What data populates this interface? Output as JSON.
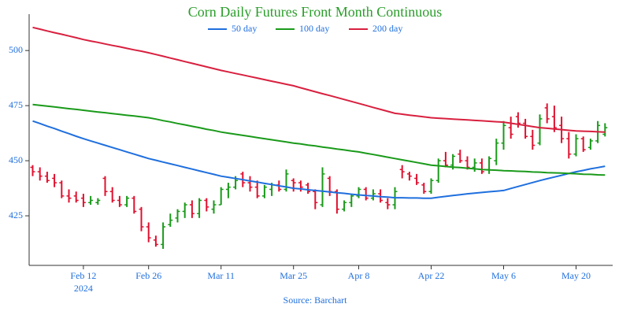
{
  "chart_data": {
    "type": "ohlc",
    "title": "Corn Daily Futures Front Month Continuous",
    "source": "Source: Barchart",
    "x": [
      "2024-02-01",
      "2024-02-02",
      "2024-02-05",
      "2024-02-06",
      "2024-02-07",
      "2024-02-08",
      "2024-02-09",
      "2024-02-12",
      "2024-02-13",
      "2024-02-14",
      "2024-02-15",
      "2024-02-16",
      "2024-02-20",
      "2024-02-21",
      "2024-02-22",
      "2024-02-23",
      "2024-02-26",
      "2024-02-27",
      "2024-02-28",
      "2024-02-29",
      "2024-03-01",
      "2024-03-04",
      "2024-03-05",
      "2024-03-06",
      "2024-03-07",
      "2024-03-08",
      "2024-03-11",
      "2024-03-12",
      "2024-03-13",
      "2024-03-14",
      "2024-03-15",
      "2024-03-18",
      "2024-03-19",
      "2024-03-20",
      "2024-03-21",
      "2024-03-22",
      "2024-03-25",
      "2024-03-26",
      "2024-03-27",
      "2024-03-28",
      "2024-04-01",
      "2024-04-02",
      "2024-04-03",
      "2024-04-04",
      "2024-04-05",
      "2024-04-08",
      "2024-04-09",
      "2024-04-10",
      "2024-04-11",
      "2024-04-12",
      "2024-04-15",
      "2024-04-16",
      "2024-04-17",
      "2024-04-18",
      "2024-04-19",
      "2024-04-22",
      "2024-04-23",
      "2024-04-24",
      "2024-04-25",
      "2024-04-26",
      "2024-04-29",
      "2024-04-30",
      "2024-05-01",
      "2024-05-02",
      "2024-05-03",
      "2024-05-06",
      "2024-05-07",
      "2024-05-08",
      "2024-05-09",
      "2024-05-10",
      "2024-05-13",
      "2024-05-14",
      "2024-05-15",
      "2024-05-16",
      "2024-05-17",
      "2024-05-20",
      "2024-05-21",
      "2024-05-22",
      "2024-05-23",
      "2024-05-24"
    ],
    "open": [
      447,
      445,
      443,
      442,
      440,
      434,
      434,
      433,
      431,
      431,
      442,
      436,
      432,
      430,
      433,
      428,
      420,
      414,
      412,
      421,
      424,
      427,
      430,
      426,
      432,
      428,
      430,
      437,
      438,
      444,
      440,
      438,
      434,
      437,
      439,
      437,
      441,
      440,
      439,
      436,
      430,
      442,
      436,
      428,
      431,
      434,
      437,
      433,
      435,
      431,
      430,
      446,
      444,
      442,
      439,
      436,
      441,
      450,
      448,
      453,
      450,
      447,
      449,
      446,
      450,
      458,
      465,
      470,
      467,
      461,
      458,
      474,
      470,
      466,
      460,
      453,
      460,
      456,
      459,
      462
    ],
    "high": [
      448,
      447,
      445,
      444,
      441,
      437,
      436,
      435,
      434,
      433,
      443,
      438,
      434,
      434,
      434,
      429,
      422,
      416,
      422,
      426,
      428,
      431,
      432,
      433,
      433,
      432,
      438,
      440,
      443,
      445,
      443,
      441,
      439,
      440,
      441,
      446,
      442,
      441,
      440,
      437,
      447,
      443,
      437,
      432,
      435,
      438,
      438,
      437,
      437,
      433,
      438,
      448,
      445,
      444,
      440,
      442,
      451,
      454,
      453,
      455,
      452,
      451,
      451,
      452,
      460,
      468,
      470,
      472,
      469,
      464,
      471,
      476,
      475,
      470,
      463,
      462,
      461,
      460,
      468,
      467
    ],
    "low": [
      443,
      441,
      440,
      438,
      433,
      431,
      431,
      429,
      430,
      430,
      434,
      431,
      429,
      429,
      426,
      418,
      413,
      411,
      410,
      420,
      422,
      424,
      424,
      424,
      427,
      426,
      430,
      433,
      437,
      438,
      436,
      433,
      433,
      434,
      436,
      436,
      436,
      436,
      435,
      428,
      429,
      434,
      426,
      427,
      429,
      433,
      432,
      432,
      431,
      428,
      428,
      442,
      441,
      439,
      435,
      435,
      440,
      447,
      446,
      449,
      446,
      445,
      444,
      444,
      448,
      455,
      460,
      465,
      460,
      455,
      457,
      467,
      463,
      458,
      451,
      452,
      454,
      455,
      458,
      461
    ],
    "close": [
      445,
      443,
      441,
      440,
      434,
      433,
      432,
      431,
      432,
      432,
      436,
      432,
      430,
      433,
      427,
      420,
      415,
      412,
      420,
      423,
      427,
      430,
      426,
      432,
      429,
      430,
      437,
      438,
      441,
      440,
      438,
      434,
      438,
      439,
      437,
      444,
      440,
      438,
      436,
      431,
      444,
      436,
      428,
      431,
      434,
      437,
      433,
      435,
      432,
      430,
      436,
      445,
      443,
      440,
      436,
      441,
      450,
      448,
      452,
      450,
      447,
      449,
      445,
      451,
      458,
      466,
      462,
      467,
      461,
      457,
      469,
      469,
      465,
      460,
      453,
      460,
      455,
      459,
      466,
      465
    ],
    "up_color": "#1a9a1a",
    "down_color": "#e0102f",
    "series": [
      {
        "name": "50 day",
        "color": "#1f6fde",
        "values": [
          468,
          466.9,
          465.7,
          464.6,
          463.4,
          462.3,
          461.1,
          460,
          459,
          458,
          457,
          456,
          455,
          454,
          453,
          452,
          451,
          450.2,
          449.4,
          448.6,
          447.8,
          447,
          446.2,
          445.4,
          444.6,
          443.8,
          443,
          442.5,
          441.9,
          441.4,
          440.8,
          440.3,
          439.7,
          439.2,
          438.6,
          438.1,
          437.5,
          437.2,
          436.8,
          436.5,
          436.2,
          435.8,
          435.5,
          435.2,
          434.8,
          434.5,
          434.2,
          434,
          433.7,
          433.5,
          433.2,
          433.2,
          433.1,
          433.1,
          433,
          433,
          433.4,
          433.8,
          434.2,
          434.6,
          435,
          435.3,
          435.6,
          435.9,
          436.2,
          436.5,
          437.4,
          438.3,
          439.2,
          440.1,
          441,
          441.8,
          442.6,
          443.4,
          444.2,
          445,
          445.6,
          446.3,
          446.9,
          447.5
        ]
      },
      {
        "name": "100 day",
        "color": "#1a9a1a",
        "values": [
          475.5,
          475.1,
          474.8,
          474.4,
          474,
          473.6,
          473.3,
          472.9,
          472.5,
          472.1,
          471.8,
          471.4,
          471,
          470.6,
          470.3,
          469.9,
          469.5,
          468.9,
          468.2,
          467.6,
          466.9,
          466.3,
          465.6,
          465,
          464.3,
          463.7,
          463,
          462.5,
          462,
          461.5,
          461,
          460.5,
          460,
          459.5,
          459,
          458.5,
          458,
          457.6,
          457.1,
          456.7,
          456.2,
          455.8,
          455.3,
          454.9,
          454.4,
          454,
          453.4,
          452.8,
          452.2,
          451.6,
          451,
          450.4,
          449.8,
          449.2,
          448.6,
          448,
          447.7,
          447.4,
          447.1,
          446.9,
          446.6,
          446.3,
          446,
          445.8,
          445.7,
          445.5,
          445.4,
          445.2,
          445.1,
          444.9,
          444.8,
          444.6,
          444.5,
          444.4,
          444.2,
          444.1,
          443.9,
          443.8,
          443.6,
          443.5
        ]
      },
      {
        "name": "200 day",
        "color": "#d8203f",
        "values": [
          510.5,
          509.7,
          508.9,
          508.1,
          507.4,
          506.6,
          505.8,
          505,
          504.3,
          503.7,
          503,
          502.3,
          501.7,
          501,
          500.3,
          499.7,
          499,
          498.2,
          497.4,
          496.6,
          495.8,
          495,
          494.2,
          493.4,
          492.6,
          491.8,
          491,
          490.3,
          489.6,
          488.9,
          488.2,
          487.5,
          486.8,
          486.1,
          485.4,
          484.7,
          484,
          483.1,
          482.2,
          481.3,
          480.4,
          479.6,
          478.7,
          477.8,
          476.9,
          476,
          475.1,
          474.2,
          473.3,
          472.4,
          471.5,
          471.1,
          470.7,
          470.3,
          469.9,
          469.5,
          469.3,
          469.1,
          468.9,
          468.7,
          468.5,
          468.3,
          468.1,
          467.9,
          467.7,
          467.5,
          467,
          466.5,
          466,
          465.5,
          465,
          464.7,
          464.4,
          464.1,
          463.8,
          463.5,
          463.4,
          463.3,
          463.1,
          463
        ]
      }
    ],
    "ylim": [
      402.5,
      516.5
    ],
    "yticks": [
      425,
      450,
      475,
      500
    ],
    "xticks": [
      {
        "value": "2024-02-12",
        "label": "Feb 12"
      },
      {
        "value": "2024-02-26",
        "label": "Feb 26"
      },
      {
        "value": "2024-03-11",
        "label": "Mar 11"
      },
      {
        "value": "2024-03-25",
        "label": "Mar 25"
      },
      {
        "value": "2024-04-08",
        "label": "Apr 8"
      },
      {
        "value": "2024-04-22",
        "label": "Apr 22"
      },
      {
        "value": "2024-05-06",
        "label": "May 6"
      },
      {
        "value": "2024-05-20",
        "label": "May 20"
      }
    ],
    "xtick_year": "2024",
    "legend": "top"
  }
}
